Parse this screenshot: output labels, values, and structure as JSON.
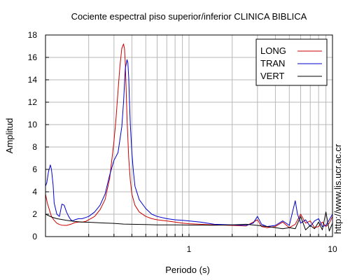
{
  "chart_data": {
    "type": "line",
    "title": "Cociente espectral piso superior/inferior  CLINICA BIBLICA",
    "xlabel": "Periodo (s)",
    "ylabel": "Amplitud",
    "side_label": "http://www.lis.ucr.ac.cr",
    "x_scale": "log",
    "xlim": [
      0.1,
      10
    ],
    "ylim": [
      0,
      18
    ],
    "x_tick_labels": [
      {
        "value": 1,
        "label": "1"
      },
      {
        "value": 10,
        "label": "10"
      }
    ],
    "y_ticks": [
      0,
      2,
      4,
      6,
      8,
      10,
      12,
      14,
      16,
      18
    ],
    "grid": true,
    "legend_position": "top-right",
    "colors": {
      "LONG": "#cc0000",
      "TRAN": "#0000cc",
      "VERT": "#000000"
    },
    "series": [
      {
        "name": "LONG",
        "x": [
          0.1,
          0.103,
          0.107,
          0.11,
          0.115,
          0.12,
          0.125,
          0.13,
          0.14,
          0.15,
          0.16,
          0.17,
          0.18,
          0.19,
          0.2,
          0.22,
          0.24,
          0.26,
          0.28,
          0.3,
          0.31,
          0.32,
          0.33,
          0.34,
          0.35,
          0.355,
          0.36,
          0.365,
          0.37,
          0.38,
          0.39,
          0.4,
          0.42,
          0.45,
          0.5,
          0.55,
          0.6,
          0.7,
          0.8,
          0.9,
          1.0,
          1.2,
          1.5,
          2.0,
          2.5,
          3.0,
          3.2,
          3.5,
          4.0,
          4.5,
          5.0,
          5.5,
          6.0,
          6.5,
          7.0,
          7.5,
          8.0,
          8.5,
          9.0,
          9.5,
          10.0
        ],
        "y": [
          3.8,
          3.0,
          2.3,
          1.8,
          1.45,
          1.2,
          1.08,
          1.02,
          1.0,
          1.1,
          1.25,
          1.3,
          1.3,
          1.35,
          1.5,
          1.8,
          2.4,
          3.3,
          5.2,
          8.5,
          10.5,
          13.0,
          15.2,
          16.8,
          17.2,
          16.8,
          15.5,
          13.0,
          10.5,
          7.0,
          5.0,
          3.8,
          2.8,
          2.2,
          1.8,
          1.6,
          1.5,
          1.4,
          1.3,
          1.2,
          1.15,
          1.1,
          1.05,
          1.0,
          0.95,
          1.5,
          0.9,
          0.8,
          0.9,
          1.3,
          0.8,
          1.1,
          2.0,
          1.2,
          1.4,
          0.8,
          0.9,
          1.3,
          0.9,
          1.2,
          1.8
        ]
      },
      {
        "name": "TRAN",
        "x": [
          0.1,
          0.102,
          0.105,
          0.108,
          0.11,
          0.113,
          0.115,
          0.12,
          0.125,
          0.13,
          0.135,
          0.14,
          0.145,
          0.15,
          0.155,
          0.16,
          0.17,
          0.18,
          0.19,
          0.2,
          0.22,
          0.24,
          0.26,
          0.28,
          0.3,
          0.32,
          0.34,
          0.35,
          0.36,
          0.37,
          0.375,
          0.38,
          0.385,
          0.39,
          0.4,
          0.41,
          0.42,
          0.45,
          0.5,
          0.55,
          0.6,
          0.7,
          0.8,
          0.9,
          1.0,
          1.2,
          1.5,
          2.0,
          2.5,
          2.8,
          3.0,
          3.2,
          3.5,
          4.0,
          4.5,
          5.0,
          5.5,
          5.7,
          6.0,
          6.5,
          7.0,
          7.5,
          8.0,
          8.5,
          9.0,
          9.5,
          10.0
        ],
        "y": [
          4.5,
          4.8,
          5.8,
          6.4,
          6.0,
          4.6,
          3.0,
          2.0,
          1.8,
          2.9,
          2.8,
          2.2,
          1.8,
          1.5,
          1.4,
          1.5,
          1.6,
          1.6,
          1.7,
          1.8,
          2.2,
          2.8,
          3.8,
          5.5,
          6.8,
          7.5,
          9.8,
          12.0,
          15.0,
          15.8,
          15.5,
          14.2,
          12.0,
          10.0,
          7.5,
          5.8,
          4.5,
          3.3,
          2.5,
          2.0,
          1.8,
          1.6,
          1.5,
          1.45,
          1.4,
          1.3,
          1.1,
          1.05,
          1.0,
          1.2,
          1.8,
          1.1,
          0.9,
          1.0,
          1.4,
          1.0,
          3.2,
          2.0,
          1.2,
          1.5,
          0.9,
          1.4,
          1.6,
          0.9,
          1.0,
          1.5,
          2.0
        ]
      },
      {
        "name": "VERT",
        "x": [
          0.1,
          0.11,
          0.12,
          0.14,
          0.16,
          0.18,
          0.2,
          0.25,
          0.3,
          0.35,
          0.4,
          0.5,
          0.6,
          0.8,
          1.0,
          1.5,
          2.0,
          2.5,
          3.0,
          3.5,
          4.0,
          4.5,
          5.0,
          5.5,
          6.0,
          6.5,
          7.0,
          7.5,
          8.0,
          8.5,
          9.0,
          9.5,
          10.0
        ],
        "y": [
          2.0,
          1.75,
          1.6,
          1.45,
          1.35,
          1.3,
          1.28,
          1.22,
          1.18,
          1.12,
          1.1,
          1.08,
          1.05,
          1.05,
          1.03,
          1.02,
          1.05,
          1.1,
          1.0,
          0.9,
          0.8,
          0.7,
          0.8,
          0.7,
          1.8,
          0.6,
          1.0,
          0.7,
          1.3,
          0.6,
          2.2,
          0.5,
          1.2
        ]
      }
    ]
  }
}
